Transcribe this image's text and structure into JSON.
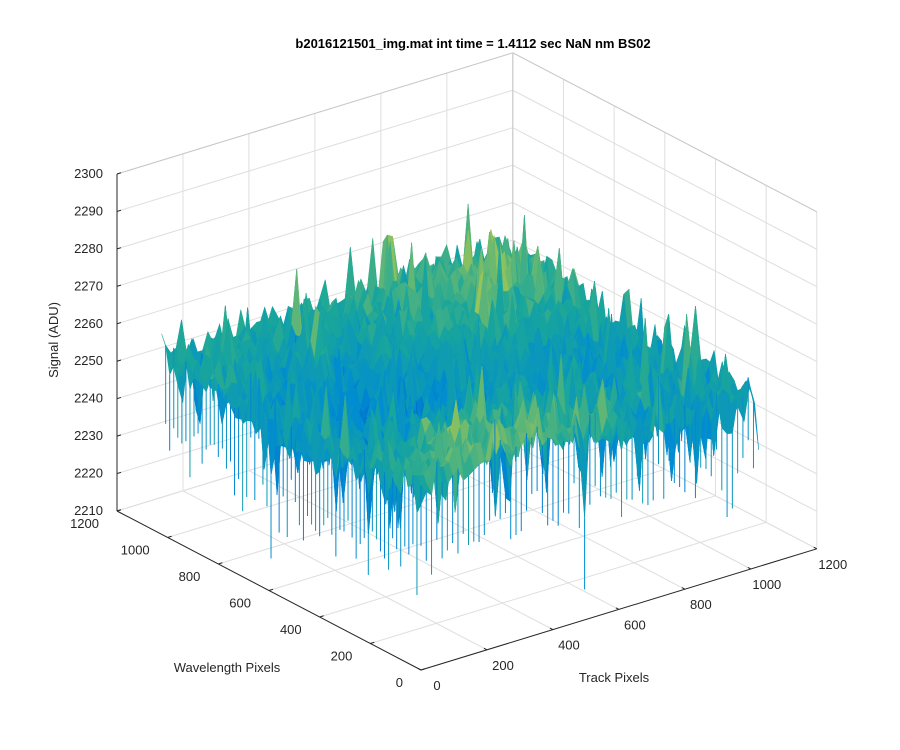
{
  "chart_data": {
    "type": "surface",
    "title": "b2016121501_img.mat int time = 1.4112 sec  NaN nm BS02",
    "xlabel": "Track Pixels",
    "ylabel": "Wavelength Pixels",
    "zlabel": "Signal (ADU)",
    "xlim": [
      0,
      1200
    ],
    "ylim": [
      0,
      1200
    ],
    "zlim": [
      2210,
      2300
    ],
    "x_ticks": [
      "0",
      "200",
      "400",
      "600",
      "800",
      "1000",
      "1200"
    ],
    "y_ticks": [
      "0",
      "200",
      "400",
      "600",
      "800",
      "1000",
      "1200"
    ],
    "z_ticks": [
      "2210",
      "2220",
      "2230",
      "2240",
      "2250",
      "2260",
      "2270",
      "2280",
      "2290",
      "2300"
    ],
    "grid": true,
    "colormap": "parula",
    "data_extent": {
      "track_pixels": [
        0,
        1024
      ],
      "wavelength_pixels": [
        0,
        1024
      ]
    },
    "surface_summary": {
      "typical_signal_range": [
        2238,
        2275
      ],
      "mean_signal": 2255,
      "peak_signal": 2282,
      "minimum_signal": 2222
    },
    "colors": {
      "low": "#0072BD",
      "mid": "#19A69B",
      "high": "#E3C83A",
      "axis": "#262626",
      "grid": "#DEDEDE"
    }
  }
}
